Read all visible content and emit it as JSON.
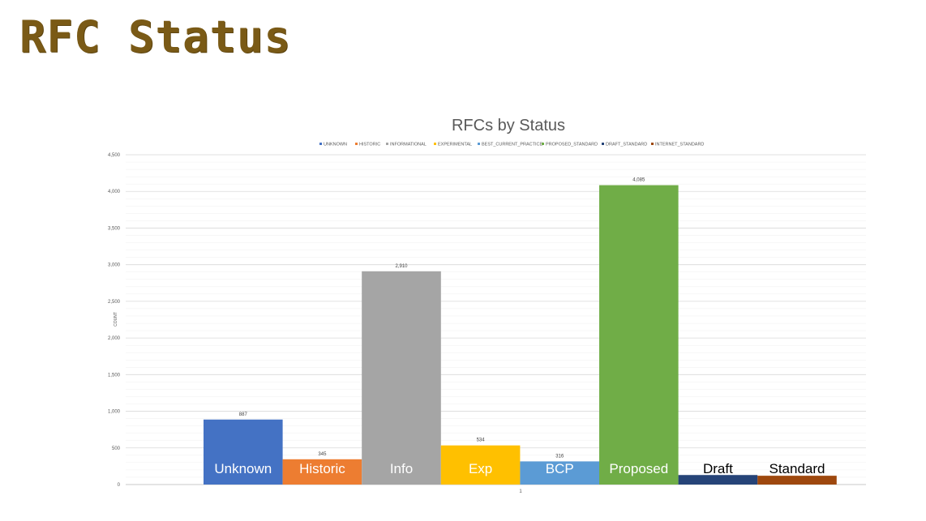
{
  "slide": {
    "title": "RFC Status"
  },
  "chart_data": {
    "type": "bar",
    "title": "RFCs  by Status",
    "ylabel": "COUNT",
    "xlabel": "",
    "x_tick": "1",
    "ylim": [
      0,
      4500
    ],
    "y_ticks": [
      0,
      500,
      1000,
      1500,
      2000,
      2500,
      3000,
      3500,
      4000,
      4500
    ],
    "y_tick_labels": [
      "0",
      "500",
      "1,000",
      "1,500",
      "2,000",
      "2,500",
      "3,000",
      "3,500",
      "4,000",
      "4,500"
    ],
    "grid": true,
    "legend_position": "top",
    "series": [
      {
        "name": "UNKNOWN",
        "short": "Unknown",
        "value": 887,
        "value_label": "887",
        "color": "#4472c4"
      },
      {
        "name": "HISTORIC",
        "short": "Historic",
        "value": 345,
        "value_label": "345",
        "color": "#ed7d31"
      },
      {
        "name": "INFORMATIONAL",
        "short": "Info",
        "value": 2910,
        "value_label": "2,910",
        "color": "#a5a5a5"
      },
      {
        "name": "EXPERIMENTAL",
        "short": "Exp",
        "value": 534,
        "value_label": "534",
        "color": "#ffc000"
      },
      {
        "name": "BEST_CURRENT_PRACTICE",
        "short": "BCP",
        "value": 316,
        "value_label": "316",
        "color": "#5b9bd5"
      },
      {
        "name": "PROPOSED_STANDARD",
        "short": "Proposed",
        "value": 4085,
        "value_label": "4,085",
        "color": "#70ad47"
      },
      {
        "name": "DRAFT_STANDARD",
        "short": "Draft",
        "value": 130,
        "value_label": "",
        "color": "#264478"
      },
      {
        "name": "INTERNET_STANDARD",
        "short": "Standard",
        "value": 120,
        "value_label": "",
        "color": "#9e480e"
      }
    ]
  }
}
